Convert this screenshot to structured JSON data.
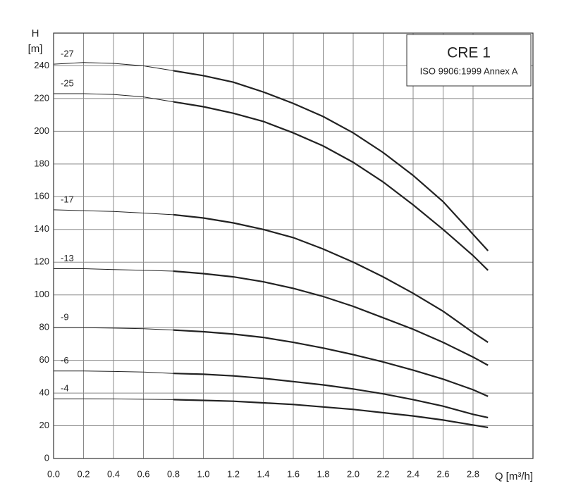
{
  "chart_data": {
    "type": "line",
    "title": "CRE 1",
    "subtitle": "ISO 9906:1999 Annex A",
    "y_label": "H",
    "y_unit": "[m]",
    "x_label": "Q [m³/h]",
    "x": [
      0,
      0.2,
      0.4,
      0.6,
      0.8,
      1.0,
      1.2,
      1.4,
      1.6,
      1.8,
      2.0,
      2.2,
      2.4,
      2.6,
      2.8,
      2.9
    ],
    "series": [
      {
        "name": "-27",
        "color": "#222222",
        "values": [
          241,
          242,
          241.5,
          240,
          237,
          234,
          230,
          224,
          217,
          209,
          199,
          187,
          173,
          157,
          137,
          127
        ]
      },
      {
        "name": "-25",
        "color": "#222222",
        "values": [
          223,
          223,
          222.5,
          221,
          218,
          215,
          211,
          206,
          199,
          191,
          181,
          169,
          155,
          140,
          124,
          115
        ]
      },
      {
        "name": "-17",
        "color": "#222222",
        "values": [
          152,
          151.5,
          151,
          150,
          149,
          147,
          144,
          140,
          135,
          128,
          120,
          111,
          101,
          90,
          77,
          71
        ]
      },
      {
        "name": "-13",
        "color": "#222222",
        "values": [
          116,
          116,
          115.5,
          115,
          114.5,
          113,
          111,
          108,
          104,
          99,
          93,
          86,
          79,
          71,
          62,
          57
        ]
      },
      {
        "name": "-9",
        "color": "#222222",
        "values": [
          80,
          80,
          79.7,
          79.3,
          78.5,
          77.5,
          76,
          74,
          71,
          67.5,
          63.5,
          59,
          54,
          48.5,
          42,
          38
        ]
      },
      {
        "name": "-6",
        "color": "#222222",
        "values": [
          53.5,
          53.5,
          53.2,
          52.8,
          52,
          51.5,
          50.5,
          49,
          47,
          45,
          42.5,
          39.5,
          36,
          32,
          27,
          25
        ]
      },
      {
        "name": "-4",
        "color": "#222222",
        "values": [
          36.5,
          36.5,
          36.4,
          36.2,
          36,
          35.5,
          35,
          34,
          33,
          31.5,
          30,
          28,
          26,
          23.5,
          20.5,
          19
        ]
      }
    ],
    "xlim": [
      0,
      3.2
    ],
    "ylim": [
      0,
      260
    ],
    "xticks": [
      {
        "value": 0,
        "label": "0.0"
      },
      0.2,
      0.4,
      0.6,
      0.8,
      {
        "value": 1,
        "label": "1.0"
      },
      1.2,
      1.4,
      1.6,
      1.8,
      {
        "value": 2,
        "label": "2.0"
      },
      2.2,
      2.4,
      2.6,
      2.8
    ],
    "yticks": [
      0,
      20,
      40,
      60,
      80,
      100,
      120,
      140,
      160,
      180,
      200,
      220,
      240
    ],
    "grid": true,
    "thick_from_x": 0.8
  }
}
